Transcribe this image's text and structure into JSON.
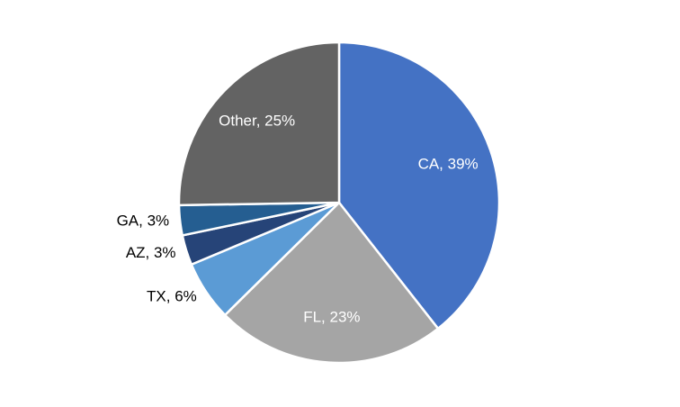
{
  "chart_data": {
    "type": "pie",
    "values": [
      39,
      23,
      6,
      3,
      3,
      25
    ],
    "value_labels": [
      "CA, 39%",
      "FL, 23%",
      "TX, 6%",
      "AZ, 3%",
      "GA, 3%",
      "Other, 25%"
    ],
    "colors": [
      "#4472c4",
      "#a5a5a5",
      "#5b9bd5",
      "#264478",
      "#255e91",
      "#636363"
    ]
  }
}
